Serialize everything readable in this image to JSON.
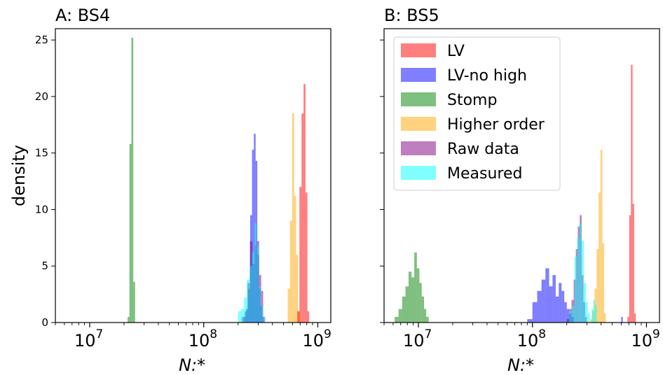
{
  "ylabel": "density",
  "chart_data": [
    {
      "type": "histogram",
      "title": "A: BS4",
      "xlabel": "N:*",
      "xscale": "log",
      "xlim": [
        5000000,
        1300000000
      ],
      "ylim": [
        0,
        26
      ],
      "xticks": [
        10000000,
        100000000,
        1000000000
      ],
      "xtick_labels": [
        {
          "base": "10",
          "exp": "7"
        },
        {
          "base": "10",
          "exp": "8"
        },
        {
          "base": "10",
          "exp": "9"
        }
      ],
      "yticks": [
        0,
        5,
        10,
        15,
        20,
        25
      ],
      "ytick_labels": [
        "0",
        "5",
        "10",
        "15",
        "20",
        "25"
      ],
      "series": [
        {
          "name": "Stomp",
          "color": "#008000",
          "bins": [
            [
              21500000,
              22300000,
              0.5
            ],
            [
              22300000,
              23200000,
              15.8
            ],
            [
              23200000,
              24100000,
              25.2
            ],
            [
              24100000,
              25000000,
              3.6
            ]
          ]
        },
        {
          "name": "LV-no high",
          "color": "#0000ff",
          "bins": [
            [
              225000000,
              235000000,
              0.5
            ],
            [
              235000000,
              245000000,
              1.2
            ],
            [
              245000000,
              255000000,
              3.0
            ],
            [
              255000000,
              265000000,
              9.5
            ],
            [
              265000000,
              275000000,
              15.3
            ],
            [
              275000000,
              285000000,
              16.7
            ],
            [
              285000000,
              295000000,
              14.3
            ],
            [
              295000000,
              305000000,
              6.0
            ],
            [
              305000000,
              315000000,
              3.0
            ],
            [
              315000000,
              325000000,
              1.5
            ],
            [
              325000000,
              335000000,
              0.5
            ]
          ]
        },
        {
          "name": "Raw data",
          "color": "#800080",
          "bins": [
            [
              215000000,
              228000000,
              0.5
            ],
            [
              228000000,
              241000000,
              1.0
            ],
            [
              241000000,
              254000000,
              3.5
            ],
            [
              254000000,
              267000000,
              7.2
            ],
            [
              267000000,
              280000000,
              5.2
            ],
            [
              280000000,
              293000000,
              6.8
            ],
            [
              293000000,
              306000000,
              7.2
            ],
            [
              306000000,
              319000000,
              4.2
            ],
            [
              319000000,
              332000000,
              2.8
            ],
            [
              332000000,
              345000000,
              0.5
            ]
          ]
        },
        {
          "name": "Measured",
          "color": "#00ffff",
          "bins": [
            [
              200000000,
              213000000,
              1.0
            ],
            [
              213000000,
              226000000,
              1.2
            ],
            [
              226000000,
              239000000,
              2.2
            ],
            [
              239000000,
              252000000,
              3.8
            ],
            [
              252000000,
              265000000,
              5.0
            ],
            [
              265000000,
              278000000,
              6.2
            ],
            [
              278000000,
              291000000,
              8.8
            ],
            [
              291000000,
              304000000,
              6.8
            ],
            [
              304000000,
              317000000,
              3.2
            ],
            [
              317000000,
              330000000,
              1.5
            ],
            [
              330000000,
              343000000,
              0.5
            ]
          ]
        },
        {
          "name": "Higher order",
          "color": "#ffa500",
          "bins": [
            [
              545000000,
              570000000,
              3.0
            ],
            [
              570000000,
              595000000,
              9.0
            ],
            [
              595000000,
              620000000,
              18.5
            ],
            [
              620000000,
              645000000,
              11.2
            ],
            [
              645000000,
              670000000,
              6.0
            ],
            [
              670000000,
              700000000,
              1.0
            ]
          ]
        },
        {
          "name": "LV",
          "color": "#ff0000",
          "bins": [
            [
              660000000,
              690000000,
              1.0
            ],
            [
              690000000,
              720000000,
              12.0
            ],
            [
              720000000,
              750000000,
              18.5
            ],
            [
              750000000,
              780000000,
              21.1
            ],
            [
              780000000,
              810000000,
              11.5
            ],
            [
              810000000,
              840000000,
              1.0
            ]
          ]
        }
      ]
    },
    {
      "type": "histogram",
      "title": "B: BS5",
      "xlabel": "N:*",
      "xscale": "log",
      "xlim": [
        5000000,
        1300000000
      ],
      "ylim": [
        0,
        26
      ],
      "xticks": [
        10000000,
        100000000,
        1000000000
      ],
      "xtick_labels": [
        {
          "base": "10",
          "exp": "7"
        },
        {
          "base": "10",
          "exp": "8"
        },
        {
          "base": "10",
          "exp": "9"
        }
      ],
      "legend_position": "upper-left",
      "series": [
        {
          "name": "LV",
          "color": "#ff0000",
          "bins": [
            [
              680000000,
              705000000,
              0.5
            ],
            [
              705000000,
              730000000,
              9.5
            ],
            [
              730000000,
              755000000,
              22.8
            ],
            [
              755000000,
              780000000,
              10.5
            ],
            [
              780000000,
              805000000,
              0.8
            ]
          ]
        },
        {
          "name": "LV-no high",
          "color": "#0000ff",
          "bins": [
            [
              90000000,
              100000000,
              0.3
            ],
            [
              100000000,
              110000000,
              1.8
            ],
            [
              110000000,
              120000000,
              2.8
            ],
            [
              120000000,
              130000000,
              3.8
            ],
            [
              130000000,
              140000000,
              4.8
            ],
            [
              140000000,
              150000000,
              3.2
            ],
            [
              150000000,
              160000000,
              4.2
            ],
            [
              160000000,
              170000000,
              2.3
            ],
            [
              170000000,
              180000000,
              3.5
            ],
            [
              180000000,
              190000000,
              2.8
            ],
            [
              190000000,
              200000000,
              1.8
            ],
            [
              200000000,
              210000000,
              1.2
            ],
            [
              210000000,
              220000000,
              0.8
            ],
            [
              220000000,
              230000000,
              0.5
            ],
            [
              600000000,
              620000000,
              0.5
            ]
          ]
        },
        {
          "name": "Stomp",
          "color": "#008000",
          "bins": [
            [
              6200000,
              6700000,
              0.5
            ],
            [
              6700000,
              7200000,
              1.2
            ],
            [
              7200000,
              7700000,
              2.3
            ],
            [
              7700000,
              8200000,
              3.2
            ],
            [
              8200000,
              8700000,
              4.5
            ],
            [
              8700000,
              9200000,
              4.0
            ],
            [
              9200000,
              9700000,
              6.2
            ],
            [
              9700000,
              10200000,
              4.8
            ],
            [
              10200000,
              10700000,
              3.5
            ],
            [
              10700000,
              11200000,
              2.3
            ],
            [
              11200000,
              11700000,
              1.2
            ],
            [
              11700000,
              12300000,
              0.5
            ]
          ]
        },
        {
          "name": "Higher order",
          "color": "#ffa500",
          "bins": [
            [
              320000000,
              335000000,
              0.3
            ],
            [
              335000000,
              350000000,
              1.0
            ],
            [
              350000000,
              365000000,
              3.0
            ],
            [
              365000000,
              380000000,
              6.5
            ],
            [
              380000000,
              395000000,
              11.5
            ],
            [
              395000000,
              410000000,
              15.3
            ],
            [
              410000000,
              425000000,
              7.0
            ],
            [
              425000000,
              440000000,
              0.8
            ]
          ]
        },
        {
          "name": "Raw data",
          "color": "#800080",
          "bins": [
            [
              200000000,
              210000000,
              0.3
            ],
            [
              210000000,
              220000000,
              1.2
            ],
            [
              220000000,
              230000000,
              2.0
            ],
            [
              230000000,
              240000000,
              3.8
            ],
            [
              240000000,
              250000000,
              6.5
            ],
            [
              250000000,
              260000000,
              8.5
            ],
            [
              260000000,
              270000000,
              9.5
            ],
            [
              270000000,
              280000000,
              4.2
            ],
            [
              280000000,
              290000000,
              1.8
            ],
            [
              290000000,
              300000000,
              0.5
            ]
          ]
        },
        {
          "name": "Measured",
          "color": "#00ffff",
          "bins": [
            [
              210000000,
              222000000,
              1.0
            ],
            [
              222000000,
              234000000,
              1.5
            ],
            [
              234000000,
              246000000,
              5.8
            ],
            [
              246000000,
              258000000,
              7.5
            ],
            [
              258000000,
              270000000,
              8.8
            ],
            [
              270000000,
              282000000,
              7.2
            ],
            [
              282000000,
              294000000,
              3.5
            ],
            [
              294000000,
              306000000,
              1.8
            ],
            [
              306000000,
              318000000,
              0.8
            ],
            [
              330000000,
              342000000,
              1.2
            ],
            [
              342000000,
              354000000,
              2.0
            ],
            [
              354000000,
              366000000,
              1.5
            ]
          ]
        }
      ]
    }
  ]
}
